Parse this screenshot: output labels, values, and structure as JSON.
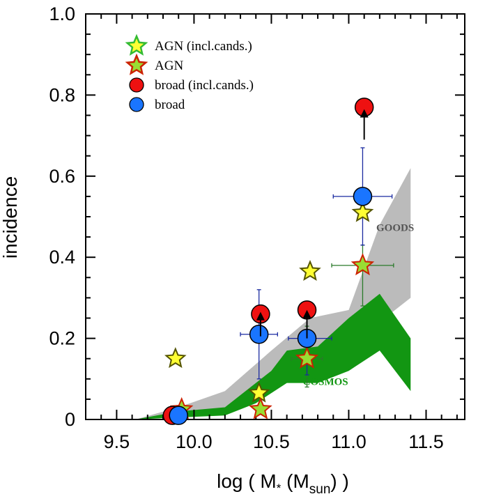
{
  "chart_data": {
    "type": "scatter",
    "xlabel_parts": [
      "log ( M",
      "*",
      " (M",
      "sun",
      ") )"
    ],
    "ylabel": "incidence",
    "xlim": [
      9.3,
      11.75
    ],
    "ylim": [
      0,
      1.0
    ],
    "xticks": [
      "9.5",
      "10.0",
      "10.5",
      "11.0",
      "11.5"
    ],
    "xtick_values": [
      9.5,
      10.0,
      10.5,
      11.0,
      11.5
    ],
    "yticks": [
      "0",
      "0.2",
      "0.4",
      "0.6",
      "0.8",
      "1.0"
    ],
    "ytick_values": [
      0,
      0.2,
      0.4,
      0.6,
      0.8,
      1.0
    ],
    "grid": false,
    "legend_position": "top-left",
    "legend": [
      {
        "label": "AGN (incl.cands.)",
        "marker": "star",
        "fill": "#ffff33",
        "stroke": "#33bb33"
      },
      {
        "label": "AGN",
        "marker": "star",
        "fill": "#99dd33",
        "stroke": "#cc2200"
      },
      {
        "label": "broad (incl.cands.)",
        "marker": "circle",
        "fill": "#ee1111",
        "stroke": "#000000"
      },
      {
        "label": "broad",
        "marker": "circle",
        "fill": "#1a75ff",
        "stroke": "#000000"
      }
    ],
    "bands": [
      {
        "name": "GOODS",
        "color": "#bbbbbb",
        "label_color": "#555555",
        "label_at": [
          11.3,
          0.465
        ],
        "upper": [
          [
            9.62,
            0.0
          ],
          [
            9.9,
            0.03
          ],
          [
            10.2,
            0.07
          ],
          [
            10.5,
            0.17
          ],
          [
            10.75,
            0.25
          ],
          [
            11.0,
            0.27
          ],
          [
            11.2,
            0.48
          ],
          [
            11.4,
            0.62
          ]
        ],
        "lower": [
          [
            9.62,
            0.0
          ],
          [
            9.9,
            0.01
          ],
          [
            10.2,
            0.03
          ],
          [
            10.4,
            0.08
          ],
          [
            10.6,
            0.14
          ],
          [
            10.8,
            0.15
          ],
          [
            11.0,
            0.2
          ],
          [
            11.2,
            0.24
          ],
          [
            11.4,
            0.3
          ]
        ]
      },
      {
        "name": "COSMOS",
        "color": "#129612",
        "label_color": "#129612",
        "label_at": [
          10.85,
          0.085
        ],
        "upper": [
          [
            9.62,
            0.0
          ],
          [
            9.9,
            0.02
          ],
          [
            10.2,
            0.03
          ],
          [
            10.5,
            0.12
          ],
          [
            10.6,
            0.17
          ],
          [
            10.8,
            0.18
          ],
          [
            11.0,
            0.25
          ],
          [
            11.2,
            0.31
          ],
          [
            11.4,
            0.2
          ]
        ],
        "lower": [
          [
            9.62,
            0.0
          ],
          [
            9.9,
            0.005
          ],
          [
            10.2,
            0.01
          ],
          [
            10.4,
            0.04
          ],
          [
            10.6,
            0.09
          ],
          [
            10.8,
            0.09
          ],
          [
            11.0,
            0.12
          ],
          [
            11.2,
            0.17
          ],
          [
            11.4,
            0.07
          ]
        ]
      }
    ],
    "series": [
      {
        "name": "AGN (incl.cands.)",
        "marker": "star",
        "fill": "#ffff33",
        "stroke": "#555500",
        "size": 14,
        "points": [
          {
            "x": 9.88,
            "y": 0.15
          },
          {
            "x": 9.92,
            "y": 0.025
          },
          {
            "x": 10.42,
            "y": 0.065
          },
          {
            "x": 10.75,
            "y": 0.365
          },
          {
            "x": 11.09,
            "y": 0.51
          }
        ]
      },
      {
        "name": "AGN",
        "marker": "star",
        "fill": "#99dd33",
        "stroke": "#cc2200",
        "size": 15,
        "points": [
          {
            "x": 9.92,
            "y": 0.025
          },
          {
            "x": 10.43,
            "y": 0.025
          },
          {
            "x": 10.73,
            "y": 0.15,
            "xerr": [
              0.1,
              0.1
            ],
            "yerr": [
              0.07,
              0.08
            ]
          },
          {
            "x": 11.09,
            "y": 0.38,
            "xerr": [
              0.2,
              0.2
            ],
            "yerr": [
              0.1,
              0.05
            ]
          }
        ],
        "errcolor": "#2a7a2a"
      },
      {
        "name": "broad (incl.cands.)",
        "marker": "circle",
        "fill": "#ee1111",
        "stroke": "#000000",
        "size": 13,
        "points": [
          {
            "x": 9.86,
            "y": 0.01
          },
          {
            "x": 10.43,
            "y": 0.26
          },
          {
            "x": 10.73,
            "y": 0.27
          },
          {
            "x": 11.1,
            "y": 0.77
          }
        ]
      },
      {
        "name": "broad",
        "marker": "circle",
        "fill": "#1a75ff",
        "stroke": "#000000",
        "size": 13,
        "points": [
          {
            "x": 9.9,
            "y": 0.01
          },
          {
            "x": 10.42,
            "y": 0.21,
            "xerr": [
              0.12,
              0.12
            ],
            "yerr": [
              0.11,
              0.11
            ]
          },
          {
            "x": 10.73,
            "y": 0.2,
            "xerr": [
              0.12,
              0.16
            ],
            "yerr": [
              0.09,
              0.09
            ]
          },
          {
            "x": 11.09,
            "y": 0.55,
            "xerr": [
              0.19,
              0.19
            ],
            "yerr": [
              0.12,
              0.12
            ]
          }
        ],
        "errcolor": "#1a2aa0"
      }
    ],
    "arrows": [
      {
        "x": 10.43,
        "from": 0.205,
        "to": 0.26
      },
      {
        "x": 10.73,
        "from": 0.2,
        "to": 0.265
      },
      {
        "x": 11.1,
        "from": 0.69,
        "to": 0.76
      }
    ]
  }
}
